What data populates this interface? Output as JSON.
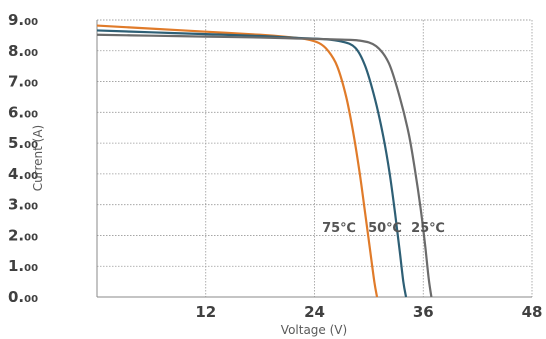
{
  "chart_data": {
    "type": "line",
    "xlabel": "Voltage (V)",
    "ylabel": "Current (A)",
    "xlim": [
      0,
      48
    ],
    "ylim": [
      0,
      9
    ],
    "x_ticks": [
      "12",
      "24",
      "36",
      "48"
    ],
    "y_ticks": [
      "9.00",
      "8.00",
      "7.00",
      "6.00",
      "5.00",
      "4.00",
      "3.00",
      "2.00",
      "1.00",
      "0.00"
    ],
    "grid": true,
    "series": [
      {
        "name": "75℃",
        "color": "#e07b2a",
        "points": [
          [
            0,
            8.82
          ],
          [
            6,
            8.72
          ],
          [
            12,
            8.62
          ],
          [
            18,
            8.52
          ],
          [
            21,
            8.45
          ],
          [
            23,
            8.38
          ],
          [
            24.5,
            8.25
          ],
          [
            25.5,
            8.0
          ],
          [
            26.5,
            7.5
          ],
          [
            27.5,
            6.5
          ],
          [
            28.3,
            5.3
          ],
          [
            29.0,
            4.0
          ],
          [
            29.6,
            2.7
          ],
          [
            30.1,
            1.6
          ],
          [
            30.6,
            0.5
          ],
          [
            30.9,
            0.0
          ]
        ]
      },
      {
        "name": "50℃",
        "color": "#2e5f75",
        "points": [
          [
            0,
            8.66
          ],
          [
            6,
            8.6
          ],
          [
            12,
            8.54
          ],
          [
            18,
            8.48
          ],
          [
            22,
            8.42
          ],
          [
            25,
            8.38
          ],
          [
            27,
            8.3
          ],
          [
            28.5,
            8.1
          ],
          [
            29.6,
            7.5
          ],
          [
            30.7,
            6.4
          ],
          [
            31.6,
            5.2
          ],
          [
            32.3,
            4.0
          ],
          [
            32.9,
            2.7
          ],
          [
            33.4,
            1.5
          ],
          [
            33.8,
            0.5
          ],
          [
            34.1,
            0.0
          ]
        ]
      },
      {
        "name": "25℃",
        "color": "#6b6b6b",
        "points": [
          [
            0,
            8.52
          ],
          [
            6,
            8.49
          ],
          [
            12,
            8.46
          ],
          [
            18,
            8.43
          ],
          [
            22,
            8.4
          ],
          [
            26,
            8.37
          ],
          [
            29,
            8.33
          ],
          [
            30.8,
            8.15
          ],
          [
            32.2,
            7.6
          ],
          [
            33.4,
            6.5
          ],
          [
            34.4,
            5.3
          ],
          [
            35.1,
            4.1
          ],
          [
            35.7,
            2.9
          ],
          [
            36.2,
            1.7
          ],
          [
            36.6,
            0.6
          ],
          [
            36.9,
            0.0
          ]
        ]
      }
    ]
  }
}
